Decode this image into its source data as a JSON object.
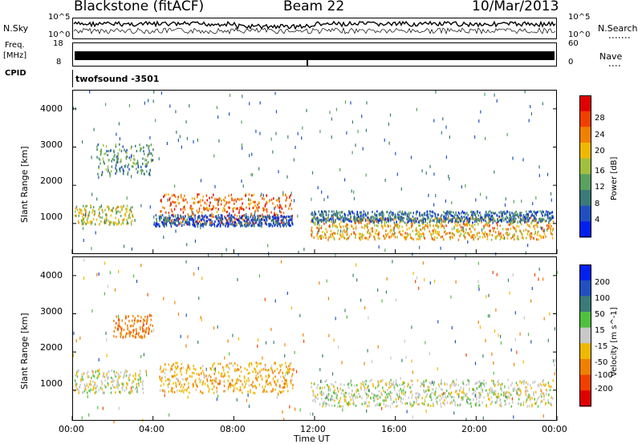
{
  "header": {
    "station": "Blackstone (fitACF)",
    "beam": "Beam 22",
    "date": "10/Mar/2013"
  },
  "noise_panel": {
    "left_label": "N.Sky",
    "left_ticks": [
      "10^5",
      "10^0"
    ],
    "right_ticks": [
      "10^5",
      "10^0"
    ],
    "right_label": "N.Search"
  },
  "freq_panel": {
    "left_label_1": "Freq.",
    "left_label_2": "[MHz]",
    "left_ticks": [
      "18",
      "8"
    ],
    "right_ticks": [
      "60",
      "0"
    ],
    "right_label": "Nave"
  },
  "cpid_panel": {
    "label": "CPID",
    "program": "twofsound  -3501"
  },
  "colors": {
    "power": [
      "#0020f0",
      "#2050c0",
      "#3a7a78",
      "#5aa060",
      "#a0c040",
      "#f0b800",
      "#f08000",
      "#f04000",
      "#e00000"
    ],
    "velocity": [
      "#0020f0",
      "#2050c0",
      "#3a7a78",
      "#50c040",
      "#c8c8c8",
      "#f0b800",
      "#f08000",
      "#f04000",
      "#e00000"
    ]
  },
  "chart_data": [
    {
      "type": "heatmap",
      "title": "Power",
      "ylabel": "Slant Range [km]",
      "xlabel": "",
      "x_range": [
        0,
        24
      ],
      "ylim": [
        200,
        4500
      ],
      "y_ticks": [
        "1000",
        "2000",
        "3000",
        "4000"
      ],
      "x_ticks": [],
      "colorbar": {
        "label": "Power [dB]",
        "ticks": [
          "4",
          "8",
          "12",
          "16",
          "20",
          "24",
          "28"
        ]
      },
      "echo_regions": [
        {
          "t_start": 0.1,
          "t_end": 3.0,
          "range_center": 1250,
          "range_width": 250,
          "value": 18
        },
        {
          "t_start": 1.2,
          "t_end": 4.0,
          "range_center": 2700,
          "range_width": 400,
          "value": 12
        },
        {
          "t_start": 4.3,
          "t_end": 10.9,
          "range_center": 1400,
          "range_width": 400,
          "value": 26
        },
        {
          "t_start": 4.0,
          "t_end": 10.9,
          "range_center": 1100,
          "range_width": 150,
          "value": 6
        },
        {
          "t_start": 11.8,
          "t_end": 23.8,
          "range_center": 900,
          "range_width": 300,
          "value": 22
        },
        {
          "t_start": 11.8,
          "t_end": 23.8,
          "range_center": 1200,
          "range_width": 150,
          "value": 8
        }
      ]
    },
    {
      "type": "heatmap",
      "title": "Velocity",
      "ylabel": "Slant Range [km]",
      "xlabel": "Time UT",
      "x_range": [
        0,
        24
      ],
      "ylim": [
        200,
        4500
      ],
      "y_ticks": [
        "1000",
        "2000",
        "3000",
        "4000"
      ],
      "x_ticks": [
        "00:00",
        "04:00",
        "08:00",
        "12:00",
        "16:00",
        "20:00",
        "00:00"
      ],
      "colorbar": {
        "label": "Velocity [m s^-1]",
        "ticks": [
          "200",
          "100",
          "50",
          "15",
          "-15",
          "-50",
          "-100",
          "-200"
        ]
      },
      "echo_regions": [
        {
          "t_start": 0.1,
          "t_end": 3.5,
          "range_center": 1250,
          "range_width": 300,
          "value": 0
        },
        {
          "t_start": 2.0,
          "t_end": 4.0,
          "range_center": 2700,
          "range_width": 300,
          "value": -80
        },
        {
          "t_start": 4.3,
          "t_end": 10.9,
          "range_center": 1350,
          "range_width": 400,
          "value": -40
        },
        {
          "t_start": 11.8,
          "t_end": 23.8,
          "range_center": 950,
          "range_width": 350,
          "value": 0
        }
      ]
    }
  ]
}
